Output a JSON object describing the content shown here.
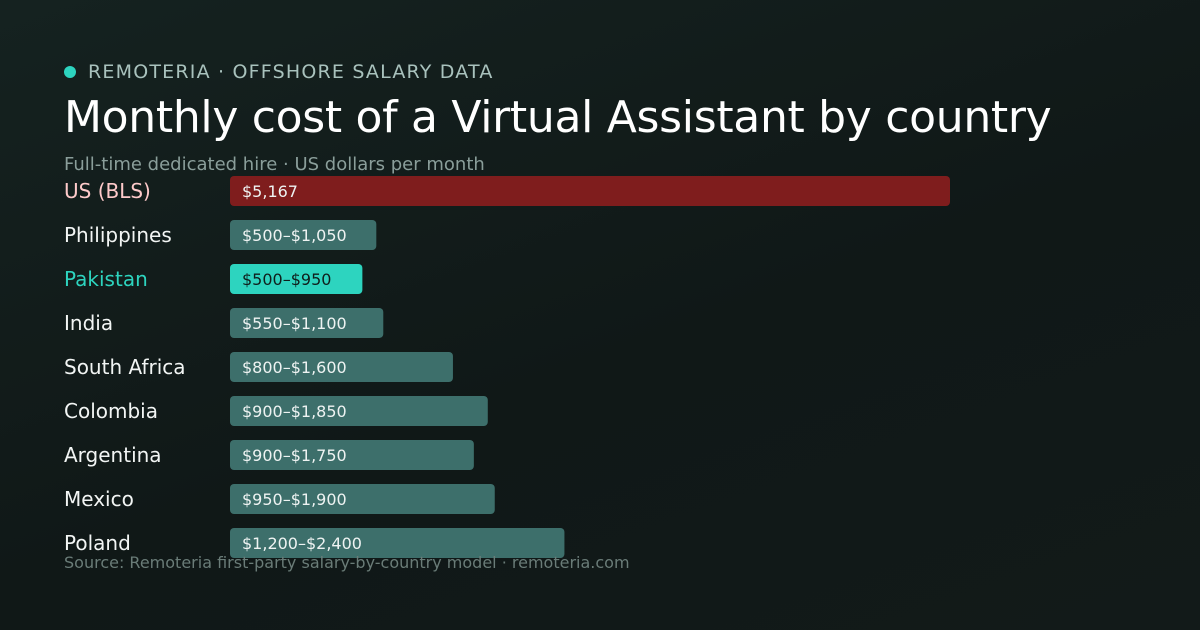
{
  "header": {
    "brand": "REMOTERIA · OFFSHORE SALARY DATA",
    "title": "Monthly cost of a Virtual Assistant by country",
    "subtitle": "Full-time dedicated hire · US dollars per month"
  },
  "footer": {
    "source": "Source: Remoteria first-party salary-by-country model · remoteria.com"
  },
  "colors": {
    "accent": "#2dd4bf",
    "us_bar": "#7f1d1d",
    "us_label": "#fecaca",
    "default_bar": "#3d6f6b",
    "highlight_label": "#2dd4bf",
    "highlight_bar": "#2dd4bf"
  },
  "chart_data": {
    "type": "bar",
    "orientation": "horizontal",
    "xlim": [
      0,
      5167
    ],
    "categories": [
      "US (BLS)",
      "Philippines",
      "Pakistan",
      "India",
      "South Africa",
      "Colombia",
      "Argentina",
      "Mexico",
      "Poland"
    ],
    "values": [
      5167,
      1050,
      950,
      1100,
      1600,
      1850,
      1750,
      1900,
      2400
    ],
    "ranges": [
      null,
      [
        500,
        1050
      ],
      [
        500,
        950
      ],
      [
        550,
        1100
      ],
      [
        800,
        1600
      ],
      [
        900,
        1850
      ],
      [
        900,
        1750
      ],
      [
        950,
        1900
      ],
      [
        1200,
        2400
      ]
    ],
    "value_labels": [
      "$5,167",
      "$500–$1,050",
      "$500–$950",
      "$550–$1,100",
      "$800–$1,600",
      "$900–$1,850",
      "$900–$1,750",
      "$950–$1,900",
      "$1,200–$2,400"
    ],
    "highlight": [
      "us",
      "default",
      "accent",
      "default",
      "default",
      "default",
      "default",
      "default",
      "default"
    ]
  }
}
